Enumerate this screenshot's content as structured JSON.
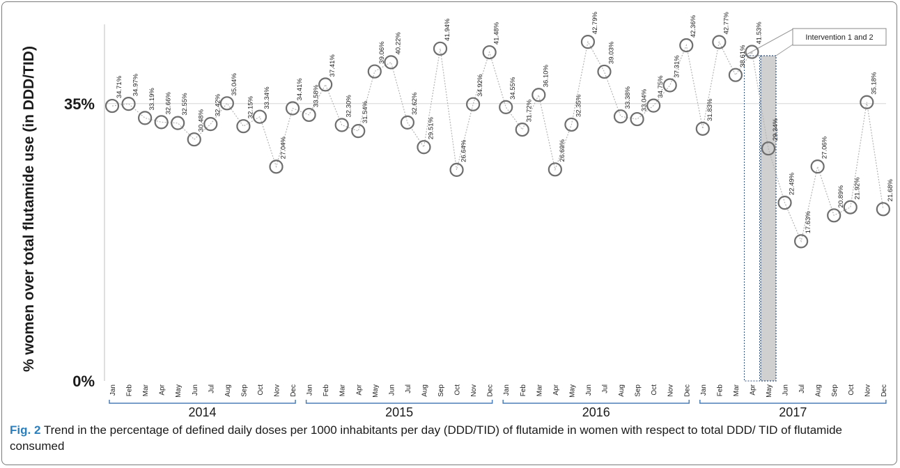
{
  "chart_data": {
    "type": "line",
    "ylabel": "% women over total flutamide use (in DDD/TID)",
    "y_ticks": [
      "35%",
      "0%"
    ],
    "y_tick_values": [
      35,
      0
    ],
    "ylim": [
      0,
      45
    ],
    "months": [
      "Jan",
      "Feb",
      "Mar",
      "Apr",
      "May",
      "Jun",
      "Jul",
      "Aug",
      "Sep",
      "Oct",
      "Nov",
      "Dec",
      "Jan",
      "Feb",
      "Mar",
      "Apr",
      "May",
      "Jun",
      "Jul",
      "Aug",
      "Sep",
      "Oct",
      "Nov",
      "Dec",
      "Jan",
      "Feb",
      "Mar",
      "Apr",
      "May",
      "Jun",
      "Jul",
      "Aug",
      "Sep",
      "Oct",
      "Nov",
      "Dec",
      "Jan",
      "Feb",
      "Mar",
      "Apr",
      "May",
      "Jun",
      "Jul",
      "Aug",
      "Sep",
      "Oct",
      "Nov",
      "Dec"
    ],
    "years": [
      "2014",
      "2015",
      "2016",
      "2017"
    ],
    "values": [
      34.71,
      34.97,
      33.19,
      32.66,
      32.55,
      30.48,
      32.42,
      35.04,
      32.15,
      33.34,
      27.04,
      34.41,
      33.58,
      37.41,
      32.3,
      31.54,
      39.06,
      40.22,
      32.62,
      29.51,
      41.94,
      26.64,
      34.92,
      41.48,
      34.55,
      31.72,
      36.1,
      26.69,
      32.35,
      42.79,
      39.03,
      33.38,
      33.04,
      34.75,
      37.31,
      42.36,
      31.83,
      42.77,
      38.61,
      41.53,
      29.34,
      22.49,
      17.63,
      27.06,
      20.89,
      21.92,
      35.18,
      21.68
    ],
    "data_labels": [
      "34.71%",
      "34.97%",
      "33.19%",
      "32.66%",
      "32.55%",
      "30.48%",
      "32.42%",
      "35.04%",
      "32.15%",
      "33.34%",
      "27.04%",
      "34.41%",
      "33.58%",
      "37.41%",
      "32.30%",
      "31.54%",
      "39.06%",
      "40.22%",
      "32.62%",
      "29.51%",
      "41.94%",
      "26.64%",
      "34.92%",
      "41.48%",
      "34.55%",
      "31.72%",
      "36.10%",
      "26.69%",
      "32.35%",
      "42.79%",
      "39.03%",
      "33.38%",
      "33.04%",
      "34.75%",
      "37.31%",
      "42.36%",
      "31.83%",
      "42.77%",
      "38.61%",
      "41.53%",
      "29.34%",
      "22.49%",
      "17.63%",
      "27.06%",
      "20.89%",
      "21.92%",
      "35.18%",
      "21.68%"
    ],
    "annotation": {
      "text": "Intervention 1 and 2",
      "months": [
        "Apr",
        "May"
      ],
      "year": "2017"
    },
    "reference_line": 35,
    "grid": false,
    "colors": {
      "marker": "#6e6e6e",
      "line": "#b4b4b4",
      "axis": "#bfbfbf",
      "bracket": "#4a7db5",
      "shade": "#d0d0d0",
      "box_border": "#2c4f7c"
    }
  },
  "caption": {
    "label": "Fig. 2",
    "text": " Trend in the percentage of defined daily doses per 1000 inhabitants per day (DDD/TID) of flutamide in women with respect to total DDD/ TID of flutamide consumed"
  }
}
